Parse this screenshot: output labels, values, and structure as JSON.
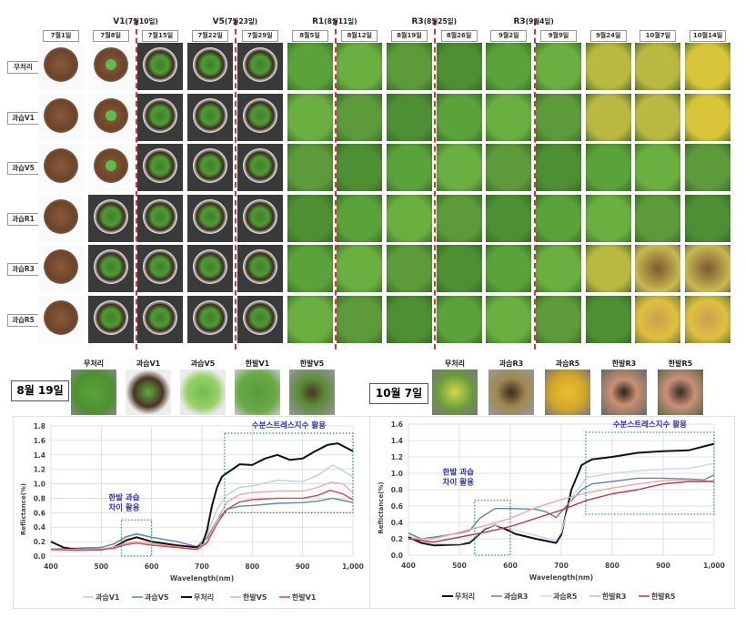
{
  "grid": {
    "dates": [
      "7월1일",
      "7월8일",
      "7월15일",
      "7월22일",
      "7월29일",
      "8월5일",
      "8월12일",
      "8월19일",
      "8월26일",
      "9월2일",
      "9월9일",
      "9월24일",
      "10월7일",
      "10월14일"
    ],
    "stages": [
      {
        "label": "V1",
        "date": "(7월10일)"
      },
      {
        "label": "V5",
        "date": "(7월23일)"
      },
      {
        "label": "R1",
        "date": "(8월11일)"
      },
      {
        "label": "R3",
        "date": "(8월25일)"
      },
      {
        "label": "R3",
        "date": "(9월4일)"
      }
    ],
    "rows": [
      "무처리",
      "과습V1",
      "과습V5",
      "과습R1",
      "과습R3",
      "과습R5"
    ]
  },
  "panel_left": {
    "date": "8월 19일",
    "thumbs": [
      "무처리",
      "과습V1",
      "과습V5",
      "한발V1",
      "한발V5"
    ]
  },
  "panel_right": {
    "date": "10월 7일",
    "thumbs": [
      "무처리",
      "과습R3",
      "과습R5",
      "한발R3",
      "한발R5"
    ]
  },
  "chart_data": [
    {
      "type": "line",
      "xlabel": "Wavelength(nm)",
      "ylabel": "Reflictance(%)",
      "xlim": [
        400,
        1000
      ],
      "ylim": [
        0,
        1.8
      ],
      "xticks": [
        "400",
        "500",
        "600",
        "700",
        "800",
        "900",
        "1,000"
      ],
      "yticks": [
        "0.0",
        "0.2",
        "0.4",
        "0.6",
        "0.8",
        "1.0",
        "1.2",
        "1.4",
        "1.6",
        "1.8"
      ],
      "grid": true,
      "legend": "bottom",
      "annotations": [
        {
          "text": [
            "한발 과습",
            "차이 활용"
          ],
          "box": {
            "x": [
              540,
              600
            ],
            "y": [
              0,
              0.5
            ]
          }
        },
        {
          "text": [
            "수분스트레스지수 활용"
          ],
          "box": {
            "x": [
              745,
              1000
            ],
            "y": [
              0.6,
              1.7
            ]
          }
        }
      ],
      "series": [
        {
          "name": "과습V1",
          "color": "#bcd0e2",
          "x": [
            400,
            450,
            500,
            525,
            550,
            570,
            600,
            650,
            690,
            710,
            730,
            750,
            775,
            800,
            850,
            900,
            930,
            960,
            1000
          ],
          "y": [
            0.1,
            0.11,
            0.12,
            0.16,
            0.26,
            0.3,
            0.26,
            0.2,
            0.13,
            0.3,
            0.65,
            0.85,
            0.95,
            0.97,
            1.05,
            1.03,
            1.12,
            1.26,
            1.1
          ]
        },
        {
          "name": "과습V5",
          "color": "#5b87ad",
          "x": [
            400,
            450,
            500,
            525,
            550,
            570,
            600,
            650,
            690,
            710,
            730,
            750,
            775,
            800,
            850,
            900,
            930,
            960,
            1000
          ],
          "y": [
            0.1,
            0.11,
            0.12,
            0.17,
            0.27,
            0.31,
            0.26,
            0.2,
            0.13,
            0.25,
            0.5,
            0.65,
            0.69,
            0.7,
            0.73,
            0.74,
            0.76,
            0.8,
            0.74
          ]
        },
        {
          "name": "무처리",
          "color": "#111111",
          "x": [
            400,
            425,
            450,
            500,
            525,
            550,
            570,
            600,
            650,
            690,
            700,
            710,
            720,
            730,
            740,
            750,
            775,
            800,
            825,
            850,
            875,
            900,
            925,
            950,
            970,
            1000
          ],
          "y": [
            0.2,
            0.12,
            0.09,
            0.09,
            0.12,
            0.22,
            0.26,
            0.2,
            0.15,
            0.12,
            0.15,
            0.35,
            0.7,
            0.95,
            1.1,
            1.15,
            1.27,
            1.26,
            1.35,
            1.4,
            1.33,
            1.35,
            1.45,
            1.54,
            1.56,
            1.45
          ]
        },
        {
          "name": "한발V5",
          "color": "#f2a7a9",
          "x": [
            400,
            450,
            500,
            525,
            550,
            570,
            600,
            650,
            690,
            710,
            730,
            750,
            775,
            800,
            850,
            900,
            930,
            955,
            980,
            1000
          ],
          "y": [
            0.1,
            0.09,
            0.1,
            0.12,
            0.18,
            0.2,
            0.17,
            0.13,
            0.1,
            0.2,
            0.5,
            0.75,
            0.85,
            0.88,
            0.9,
            0.9,
            0.95,
            1.02,
            1.0,
            0.88
          ]
        },
        {
          "name": "한발V1",
          "color": "#d9474f",
          "x": [
            400,
            450,
            500,
            525,
            550,
            570,
            600,
            650,
            690,
            710,
            730,
            750,
            775,
            800,
            850,
            900,
            930,
            955,
            980,
            1000
          ],
          "y": [
            0.09,
            0.08,
            0.09,
            0.11,
            0.16,
            0.18,
            0.15,
            0.12,
            0.09,
            0.18,
            0.45,
            0.65,
            0.75,
            0.78,
            0.8,
            0.8,
            0.84,
            0.91,
            0.86,
            0.78
          ]
        }
      ]
    },
    {
      "type": "line",
      "xlabel": "Wavelength(nm)",
      "ylabel": "Reflictance(%)",
      "xlim": [
        400,
        1000
      ],
      "ylim": [
        0,
        1.6
      ],
      "xticks": [
        "400",
        "500",
        "600",
        "700",
        "800",
        "900",
        "1,000"
      ],
      "yticks": [
        "0.0",
        "0.2",
        "0.4",
        "0.6",
        "0.8",
        "1.0",
        "1.2",
        "1.4",
        "1.6"
      ],
      "grid": true,
      "legend": "bottom",
      "annotations": [
        {
          "text": [
            "한발 과습",
            "차이 활용"
          ],
          "box": {
            "x": [
              530,
              600
            ],
            "y": [
              0,
              0.67
            ]
          }
        },
        {
          "text": [
            "수분스트레스지수 활용"
          ],
          "box": {
            "x": [
              748,
              1000
            ],
            "y": [
              0.5,
              1.5
            ]
          }
        }
      ],
      "series": [
        {
          "name": "무처리",
          "color": "#111111",
          "x": [
            400,
            425,
            450,
            500,
            520,
            550,
            570,
            590,
            610,
            650,
            690,
            700,
            720,
            740,
            760,
            800,
            850,
            900,
            950,
            1000
          ],
          "y": [
            0.22,
            0.15,
            0.12,
            0.13,
            0.15,
            0.32,
            0.37,
            0.32,
            0.26,
            0.2,
            0.15,
            0.25,
            0.8,
            1.1,
            1.17,
            1.2,
            1.25,
            1.27,
            1.28,
            1.36
          ]
        },
        {
          "name": "과습R3",
          "color": "#5b87ad",
          "x": [
            400,
            425,
            450,
            500,
            520,
            540,
            570,
            600,
            650,
            670,
            690,
            710,
            740,
            760,
            800,
            850,
            900,
            950,
            980,
            1000
          ],
          "y": [
            0.27,
            0.2,
            0.22,
            0.27,
            0.3,
            0.45,
            0.57,
            0.57,
            0.56,
            0.53,
            0.46,
            0.6,
            0.8,
            0.87,
            0.9,
            0.94,
            0.94,
            0.93,
            0.92,
            0.98
          ]
        },
        {
          "name": "과습R5",
          "color": "#c9d9e8",
          "x": [
            400,
            425,
            450,
            500,
            520,
            550,
            570,
            600,
            650,
            690,
            700,
            720,
            750,
            800,
            850,
            900,
            950,
            1000
          ],
          "y": [
            0.25,
            0.18,
            0.14,
            0.14,
            0.17,
            0.33,
            0.37,
            0.32,
            0.24,
            0.18,
            0.28,
            0.7,
            0.95,
            1.0,
            1.03,
            1.05,
            1.06,
            1.12
          ]
        },
        {
          "name": "한발R3",
          "color": "#f2a7a9",
          "x": [
            400,
            450,
            500,
            550,
            600,
            650,
            700,
            750,
            800,
            850,
            900,
            950,
            1000
          ],
          "y": [
            0.2,
            0.2,
            0.28,
            0.36,
            0.45,
            0.58,
            0.68,
            0.76,
            0.82,
            0.87,
            0.91,
            0.92,
            0.9
          ]
        },
        {
          "name": "한발R5",
          "color": "#c8323b",
          "x": [
            400,
            450,
            500,
            550,
            600,
            650,
            700,
            750,
            800,
            850,
            900,
            950,
            1000
          ],
          "y": [
            0.2,
            0.16,
            0.22,
            0.28,
            0.35,
            0.45,
            0.55,
            0.67,
            0.75,
            0.8,
            0.87,
            0.9,
            0.9
          ]
        }
      ]
    }
  ]
}
